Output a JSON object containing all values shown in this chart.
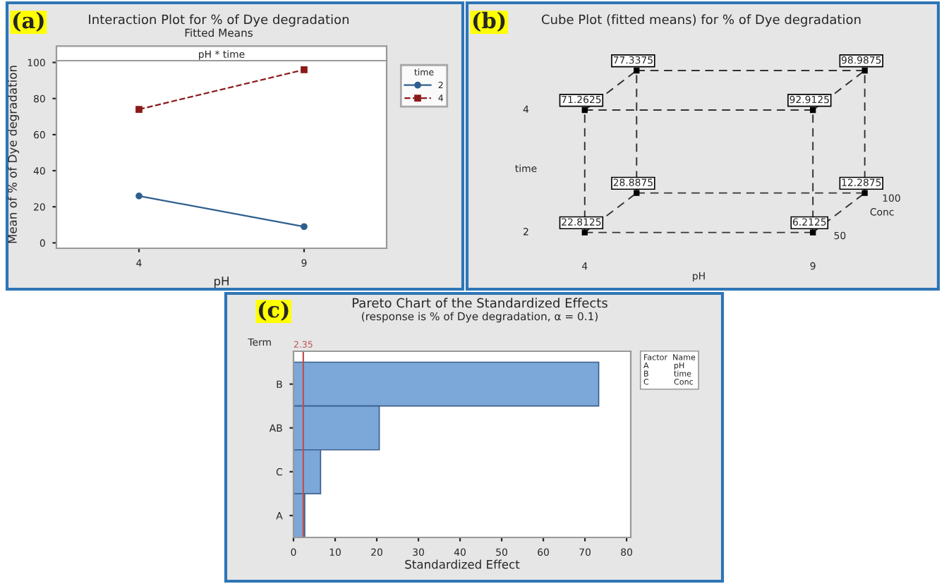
{
  "chart_data": [
    {
      "type": "line",
      "title": "Interaction Plot for % of Dye degradation",
      "subtitle": "Fitted Means",
      "xlabel": "pH",
      "ylabel": "Mean of % of Dye degradation",
      "legend_title": "time",
      "categories": [
        "4",
        "9"
      ],
      "series": [
        {
          "name": "2",
          "color": "#2f5f8f",
          "values": [
            26,
            9
          ],
          "marker": "circle",
          "line_style": "solid"
        },
        {
          "name": "4",
          "color": "#8b1a1a",
          "values": [
            74,
            96
          ],
          "marker": "square",
          "line_style": "dashed"
        }
      ],
      "ylim": [
        -3,
        101
      ],
      "yticks": [
        0,
        20,
        40,
        60,
        80,
        100
      ],
      "legend": "top right",
      "grid": false,
      "annotations": [
        "(a)",
        "pH * time"
      ]
    },
    {
      "type": "other",
      "title": "Cube Plot (fitted means) for % of Dye degradation",
      "xlabel": "pH",
      "ylabel": "time",
      "annotations": [
        "(b)",
        "22.8125",
        "6.2125",
        "28.8875",
        "12.2875",
        "71.2625",
        "92.9125",
        "77.3375",
        "98.9875",
        "Conc",
        "50",
        "100",
        "4",
        "9",
        "2",
        "4"
      ]
    },
    {
      "type": "bar",
      "orientation": "horizontal",
      "title": "Pareto Chart of the Standardized Effects",
      "subtitle": "(response is % of Dye degradation, α = 0.1)",
      "xlabel": "Standardized Effect",
      "ylabel": "Term",
      "categories": [
        "B",
        "AB",
        "C",
        "A"
      ],
      "values": [
        73.3,
        20.6,
        6.5,
        2.7
      ],
      "color": "#7ba7d9",
      "xlim": [
        0,
        81
      ],
      "xticks": [
        0,
        10,
        20,
        30,
        40,
        50,
        60,
        70,
        80
      ],
      "ref_lines": [
        {
          "axis": "x",
          "value": 2.35,
          "label": "2.35",
          "color": "#c0504d"
        }
      ],
      "annotations": [
        "(c)",
        "Factor  Name\nA          pH\nB          time\nC          Conc"
      ]
    }
  ]
}
